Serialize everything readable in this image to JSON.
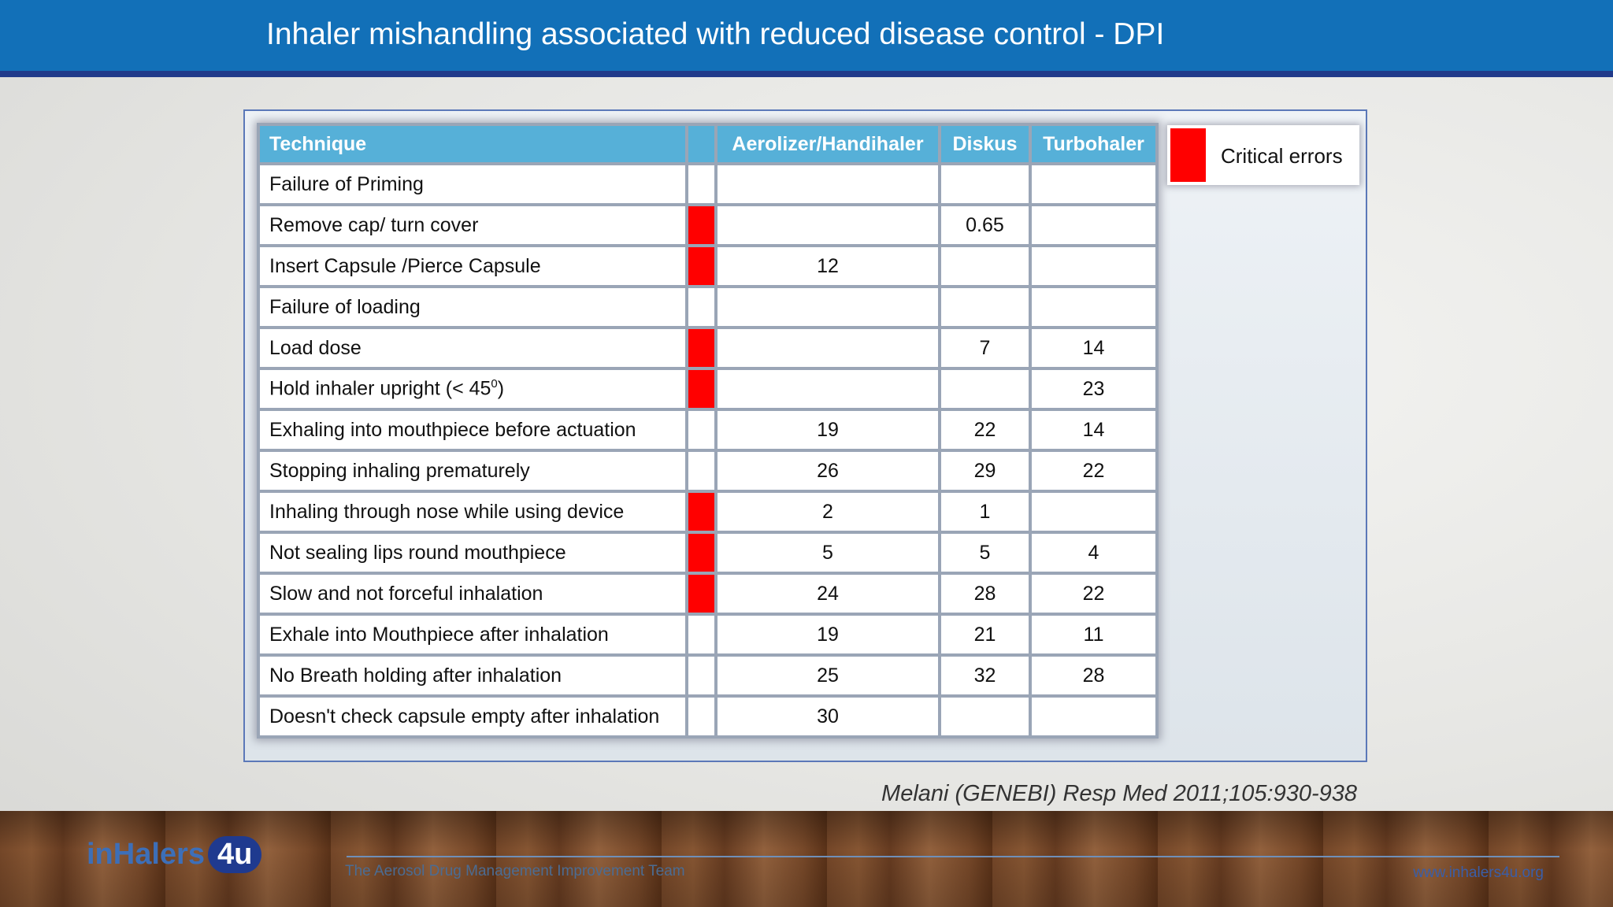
{
  "slide": {
    "title": "Inhaler mishandling associated with reduced disease control - DPI",
    "citation": "Melani (GENEBI) Resp Med 2011;105:930-938"
  },
  "table": {
    "headers": {
      "technique": "Technique",
      "critical": "",
      "aerolizer": "Aerolizer/Handihaler",
      "diskus": "Diskus",
      "turbohaler": "Turbohaler"
    },
    "rows": [
      {
        "technique": "Failure of Priming",
        "critical": false,
        "aerolizer": "",
        "diskus": "",
        "turbohaler": ""
      },
      {
        "technique": "Remove cap/ turn cover",
        "critical": true,
        "aerolizer": "",
        "diskus": "0.65",
        "turbohaler": ""
      },
      {
        "technique": "Insert Capsule /Pierce Capsule",
        "critical": true,
        "aerolizer": "12",
        "diskus": "",
        "turbohaler": ""
      },
      {
        "technique": "Failure of loading",
        "critical": false,
        "aerolizer": "",
        "diskus": "",
        "turbohaler": ""
      },
      {
        "technique": "Load dose",
        "critical": true,
        "aerolizer": "",
        "diskus": "7",
        "turbohaler": "14"
      },
      {
        "technique": "Hold inhaler upright (< 45",
        "technique_sup": "0",
        "technique_after": ")",
        "critical": true,
        "aerolizer": "",
        "diskus": "",
        "turbohaler": "23"
      },
      {
        "technique": "Exhaling into mouthpiece before actuation",
        "critical": false,
        "aerolizer": "19",
        "diskus": "22",
        "turbohaler": "14"
      },
      {
        "technique": "Stopping inhaling prematurely",
        "critical": false,
        "aerolizer": "26",
        "diskus": "29",
        "turbohaler": "22"
      },
      {
        "technique": "Inhaling through nose while using device",
        "critical": true,
        "aerolizer": "2",
        "diskus": "1",
        "turbohaler": ""
      },
      {
        "technique": "Not sealing lips round mouthpiece",
        "critical": true,
        "aerolizer": "5",
        "diskus": "5",
        "turbohaler": "4"
      },
      {
        "technique": "Slow and not forceful inhalation",
        "critical": true,
        "aerolizer": "24",
        "diskus": "28",
        "turbohaler": "22"
      },
      {
        "technique": "Exhale into Mouthpiece after inhalation",
        "critical": false,
        "aerolizer": "19",
        "diskus": "21",
        "turbohaler": "11"
      },
      {
        "technique": "No Breath holding after inhalation",
        "critical": false,
        "aerolizer": "25",
        "diskus": "32",
        "turbohaler": "28"
      },
      {
        "technique": "Doesn't check capsule empty after inhalation",
        "critical": false,
        "aerolizer": "30",
        "diskus": "",
        "turbohaler": ""
      }
    ]
  },
  "legend": {
    "label": "Critical errors",
    "color": "#ff0000"
  },
  "footer": {
    "logo_text": "inHalers",
    "logo_badge": "4u",
    "tagline": "The Aerosol Drug Management Improvement Team",
    "website": "www.inhalers4u.org"
  },
  "colors": {
    "header": "#1270b8",
    "table_header": "#56b0d8",
    "critical": "#ff0000"
  }
}
